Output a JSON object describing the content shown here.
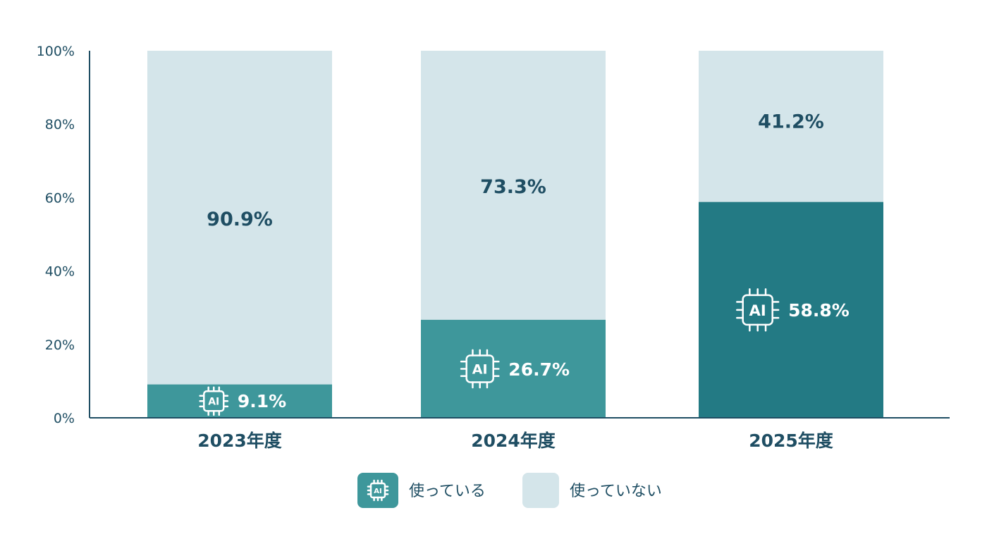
{
  "chart_data": {
    "type": "bar",
    "stacked": true,
    "categories": [
      "2023年度",
      "2024年度",
      "2025年度"
    ],
    "series": [
      {
        "name": "使っている",
        "values": [
          9.1,
          26.7,
          58.8
        ],
        "labels": [
          "9.1%",
          "26.7%",
          "58.8%"
        ],
        "colors": [
          "#3e979b",
          "#3e979b",
          "#237a84"
        ],
        "icon": "ai-chip-icon"
      },
      {
        "name": "使っていない",
        "values": [
          90.9,
          73.3,
          41.2
        ],
        "labels": [
          "90.9%",
          "73.3%",
          "41.2%"
        ],
        "color": "#d4e5ea"
      }
    ],
    "yticks": [
      "0%",
      "20%",
      "40%",
      "60%",
      "80%",
      "100%"
    ],
    "ylim": [
      0,
      100
    ],
    "legend_position": "bottom-center",
    "grid": false
  },
  "icon_label": "AI",
  "colors": {
    "axis": "#1f4e63",
    "text": "#1f4e63",
    "legend_used": "#3e979b",
    "legend_unused": "#d4e5ea"
  }
}
